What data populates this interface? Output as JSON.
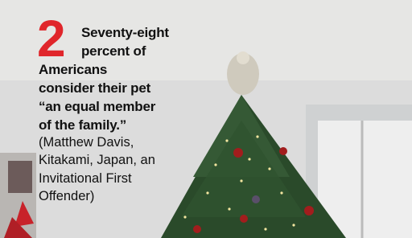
{
  "caption": {
    "number": "2",
    "headline_lines": [
      "Seventy-eight",
      "percent of",
      "Americans",
      "consider their pet",
      "“an equal member",
      "of the family.”"
    ],
    "credit_lines": [
      "(Matthew Davis,",
      "Kitakami, Japan, an",
      "Invitational First",
      "Offender)"
    ]
  }
}
